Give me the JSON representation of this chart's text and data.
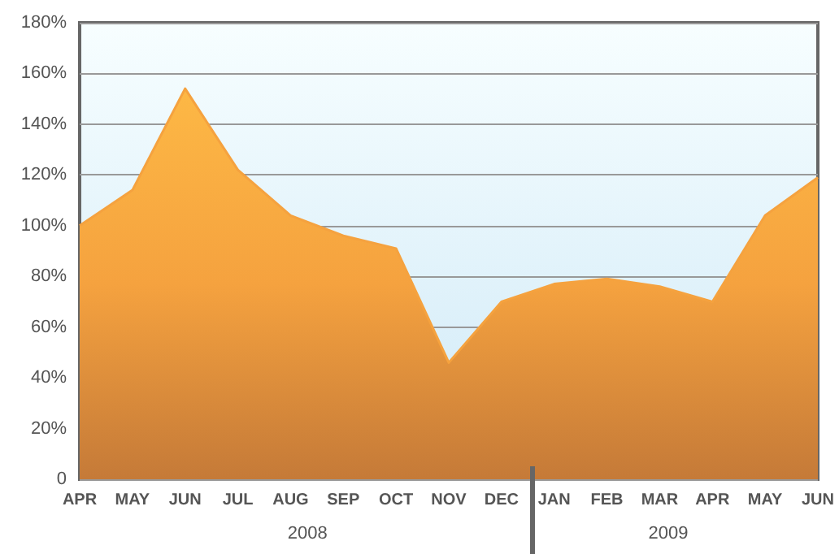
{
  "chart_data": {
    "type": "area",
    "categories": [
      "APR",
      "MAY",
      "JUN",
      "JUL",
      "AUG",
      "SEP",
      "OCT",
      "NOV",
      "DEC",
      "JAN",
      "FEB",
      "MAR",
      "APR",
      "MAY",
      "JUN"
    ],
    "series": [
      {
        "color": "#f5a23f",
        "values": [
          100,
          114,
          154,
          122,
          104,
          96,
          91,
          46,
          70,
          77,
          79,
          76,
          70,
          104,
          119
        ]
      }
    ],
    "ylim": [
      0,
      180
    ],
    "yticks": [
      {
        "value": 0,
        "label": "0"
      },
      {
        "value": 20,
        "label": "20%"
      },
      {
        "value": 40,
        "label": "40%"
      },
      {
        "value": 60,
        "label": "60%"
      },
      {
        "value": 80,
        "label": "80%"
      },
      {
        "value": 100,
        "label": "100%"
      },
      {
        "value": 120,
        "label": "120%"
      },
      {
        "value": 140,
        "label": "140%"
      },
      {
        "value": 160,
        "label": "160%"
      },
      {
        "value": 180,
        "label": "180%"
      }
    ],
    "grid": "y",
    "marker": "none",
    "annotations": [
      "2008",
      "2009"
    ]
  }
}
